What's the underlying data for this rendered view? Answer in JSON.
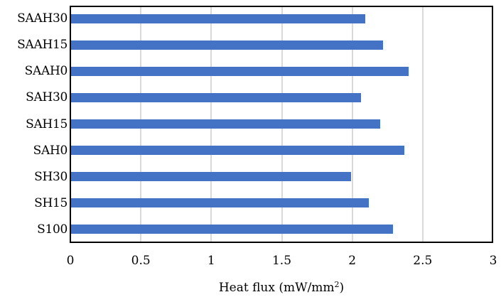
{
  "chart_data": {
    "type": "bar",
    "orientation": "horizontal",
    "title": "",
    "xlabel": "Heat flux (mW/mm²)",
    "ylabel": "",
    "xlim": [
      0,
      3
    ],
    "xticks": [
      "0",
      "0.5",
      "1",
      "1.5",
      "2",
      "2.5",
      "3"
    ],
    "grid": "vertical",
    "legend": null,
    "bar_color": "#4472C4",
    "categories": [
      "SAAH30",
      "SAAH15",
      "SAAH0",
      "SAH30",
      "SAH15",
      "SAH0",
      "SH30",
      "SH15",
      "S100"
    ],
    "values": [
      2.09,
      2.22,
      2.4,
      2.06,
      2.2,
      2.37,
      1.99,
      2.12,
      2.29
    ]
  },
  "axis": {
    "x_title_main": "Heat flux (mW/mm",
    "x_title_sup": "2",
    "x_title_end": ")"
  }
}
